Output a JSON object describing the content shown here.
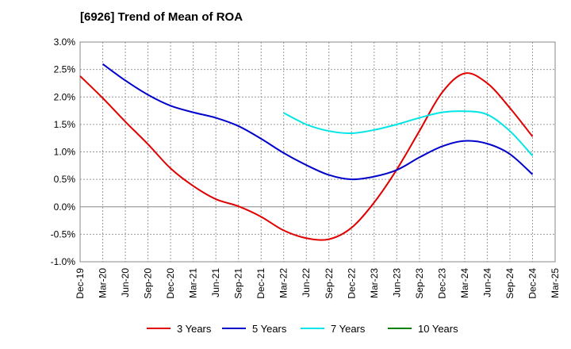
{
  "chart_data": {
    "type": "line",
    "title": "[6926]  Trend of Mean of ROA",
    "xlabel": "",
    "ylabel": "",
    "x_ticks": [
      "Dec-19",
      "Mar-20",
      "Jun-20",
      "Sep-20",
      "Dec-20",
      "Mar-21",
      "Jun-21",
      "Sep-21",
      "Dec-21",
      "Mar-22",
      "Jun-22",
      "Sep-22",
      "Dec-22",
      "Mar-23",
      "Jun-23",
      "Sep-23",
      "Dec-23",
      "Mar-24",
      "Jun-24",
      "Sep-24",
      "Dec-24",
      "Mar-25"
    ],
    "y_ticks": [
      "3.0%",
      "2.5%",
      "2.0%",
      "1.5%",
      "1.0%",
      "0.5%",
      "0.0%",
      "-0.5%",
      "-1.0%"
    ],
    "ylim": [
      -1.0,
      3.0
    ],
    "grid": true,
    "legend_position": "bottom",
    "series": [
      {
        "name": "3 Years",
        "color": "#e00000",
        "x": [
          "Dec-19",
          "Mar-20",
          "Jun-20",
          "Sep-20",
          "Dec-20",
          "Mar-21",
          "Jun-21",
          "Sep-21",
          "Dec-21",
          "Mar-22",
          "Jun-22",
          "Sep-22",
          "Dec-22",
          "Mar-23",
          "Jun-23",
          "Sep-23",
          "Dec-23",
          "Mar-24",
          "Jun-24",
          "Sep-24",
          "Dec-24"
        ],
        "values": [
          2.38,
          1.98,
          1.55,
          1.14,
          0.7,
          0.38,
          0.14,
          0.01,
          -0.18,
          -0.43,
          -0.57,
          -0.59,
          -0.38,
          0.08,
          0.68,
          1.38,
          2.08,
          2.43,
          2.25,
          1.8,
          1.28
        ]
      },
      {
        "name": "5 Years",
        "color": "#0000cc",
        "x": [
          "Mar-20",
          "Jun-20",
          "Sep-20",
          "Dec-20",
          "Mar-21",
          "Jun-21",
          "Sep-21",
          "Dec-21",
          "Mar-22",
          "Jun-22",
          "Sep-22",
          "Dec-22",
          "Mar-23",
          "Jun-23",
          "Sep-23",
          "Dec-23",
          "Mar-24",
          "Jun-24",
          "Sep-24",
          "Dec-24"
        ],
        "values": [
          2.6,
          2.3,
          2.04,
          1.84,
          1.72,
          1.62,
          1.47,
          1.24,
          0.98,
          0.76,
          0.58,
          0.5,
          0.55,
          0.67,
          0.9,
          1.1,
          1.2,
          1.15,
          0.96,
          0.59
        ]
      },
      {
        "name": "7 Years",
        "color": "#00e5e5",
        "x": [
          "Mar-22",
          "Jun-22",
          "Sep-22",
          "Dec-22",
          "Mar-23",
          "Jun-23",
          "Sep-23",
          "Dec-23",
          "Mar-24",
          "Jun-24",
          "Sep-24",
          "Dec-24"
        ],
        "values": [
          1.71,
          1.5,
          1.38,
          1.34,
          1.4,
          1.5,
          1.62,
          1.72,
          1.74,
          1.68,
          1.38,
          0.93
        ]
      },
      {
        "name": "10 Years",
        "color": "#008000",
        "x": [],
        "values": []
      }
    ]
  }
}
